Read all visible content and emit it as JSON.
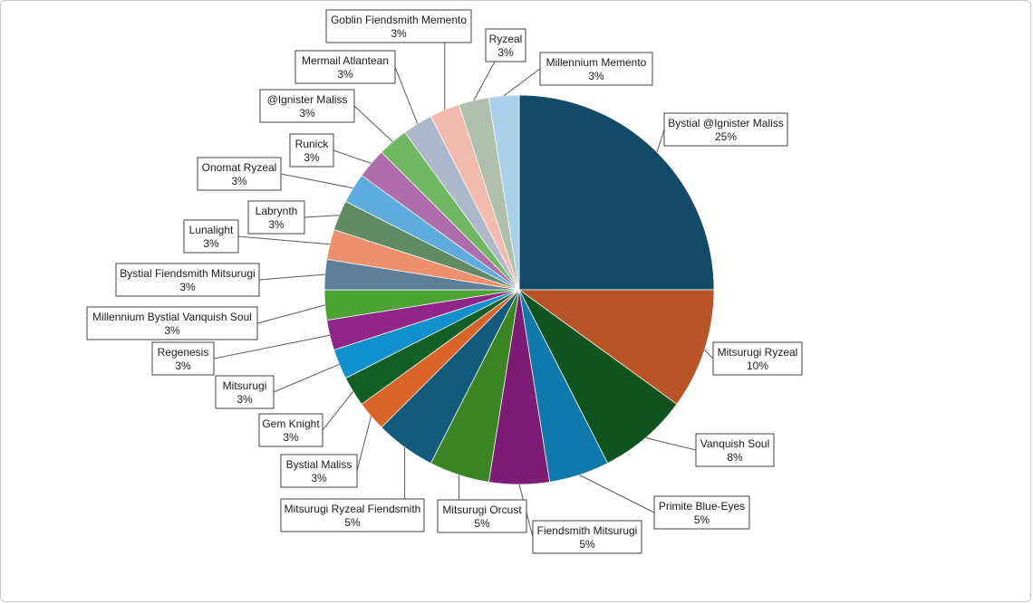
{
  "chart_data": {
    "type": "pie",
    "title": "",
    "start_angle_deg": 0,
    "direction": "clockwise",
    "legend": "none",
    "data_labels": "outside-with-leader-lines",
    "slices": [
      {
        "label": "Bystial @Ignister Maliss",
        "value": 25,
        "display": "25%",
        "color": "#134a67"
      },
      {
        "label": "Mitsurugi Ryzeal",
        "value": 10,
        "display": "10%",
        "color": "#b85426"
      },
      {
        "label": "Vanquish Soul",
        "value": 7.5,
        "display": "8%",
        "color": "#0f531e"
      },
      {
        "label": "Primite Blue-Eyes",
        "value": 5,
        "display": "5%",
        "color": "#0f78aa"
      },
      {
        "label": "Fiendsmith Mitsurugi",
        "value": 5,
        "display": "5%",
        "color": "#7c1c74"
      },
      {
        "label": "Mitsurugi Orcust",
        "value": 5,
        "display": "5%",
        "color": "#3a8424"
      },
      {
        "label": "Mitsurugi Ryzeal Fiendsmith",
        "value": 5,
        "display": "5%",
        "color": "#135b7c"
      },
      {
        "label": "Bystial Maliss",
        "value": 2.5,
        "display": "3%",
        "color": "#da6428"
      },
      {
        "label": "Gem Knight",
        "value": 2.5,
        "display": "3%",
        "color": "#136026"
      },
      {
        "label": "Mitsurugi",
        "value": 2.5,
        "display": "3%",
        "color": "#1090cc"
      },
      {
        "label": "Regenesis",
        "value": 2.5,
        "display": "3%",
        "color": "#92258a"
      },
      {
        "label": "Millennium Bystial Vanquish Soul",
        "value": 2.5,
        "display": "3%",
        "color": "#4aa332"
      },
      {
        "label": "Bystial Fiendsmith Mitsurugi",
        "value": 2.5,
        "display": "3%",
        "color": "#5f7f99"
      },
      {
        "label": "Lunalight",
        "value": 2.5,
        "display": "3%",
        "color": "#ee8f6d"
      },
      {
        "label": "Labrynth",
        "value": 2.5,
        "display": "3%",
        "color": "#618b62"
      },
      {
        "label": "Onomat Ryzeal",
        "value": 2.5,
        "display": "3%",
        "color": "#5eabdf"
      },
      {
        "label": "Runick",
        "value": 2.5,
        "display": "3%",
        "color": "#ad6eab"
      },
      {
        "label": "@Ignister Maliss",
        "value": 2.5,
        "display": "3%",
        "color": "#6fb760"
      },
      {
        "label": "Mermail Atlantean",
        "value": 2.5,
        "display": "3%",
        "color": "#acb8c9"
      },
      {
        "label": "Goblin Fiendsmith Memento",
        "value": 2.5,
        "display": "3%",
        "color": "#f3bbad"
      },
      {
        "label": "Ryzeal",
        "value": 2.5,
        "display": "3%",
        "color": "#aec0ac"
      },
      {
        "label": "Millennium Memento",
        "value": 2.5,
        "display": "3%",
        "color": "#abd0ea"
      }
    ]
  }
}
